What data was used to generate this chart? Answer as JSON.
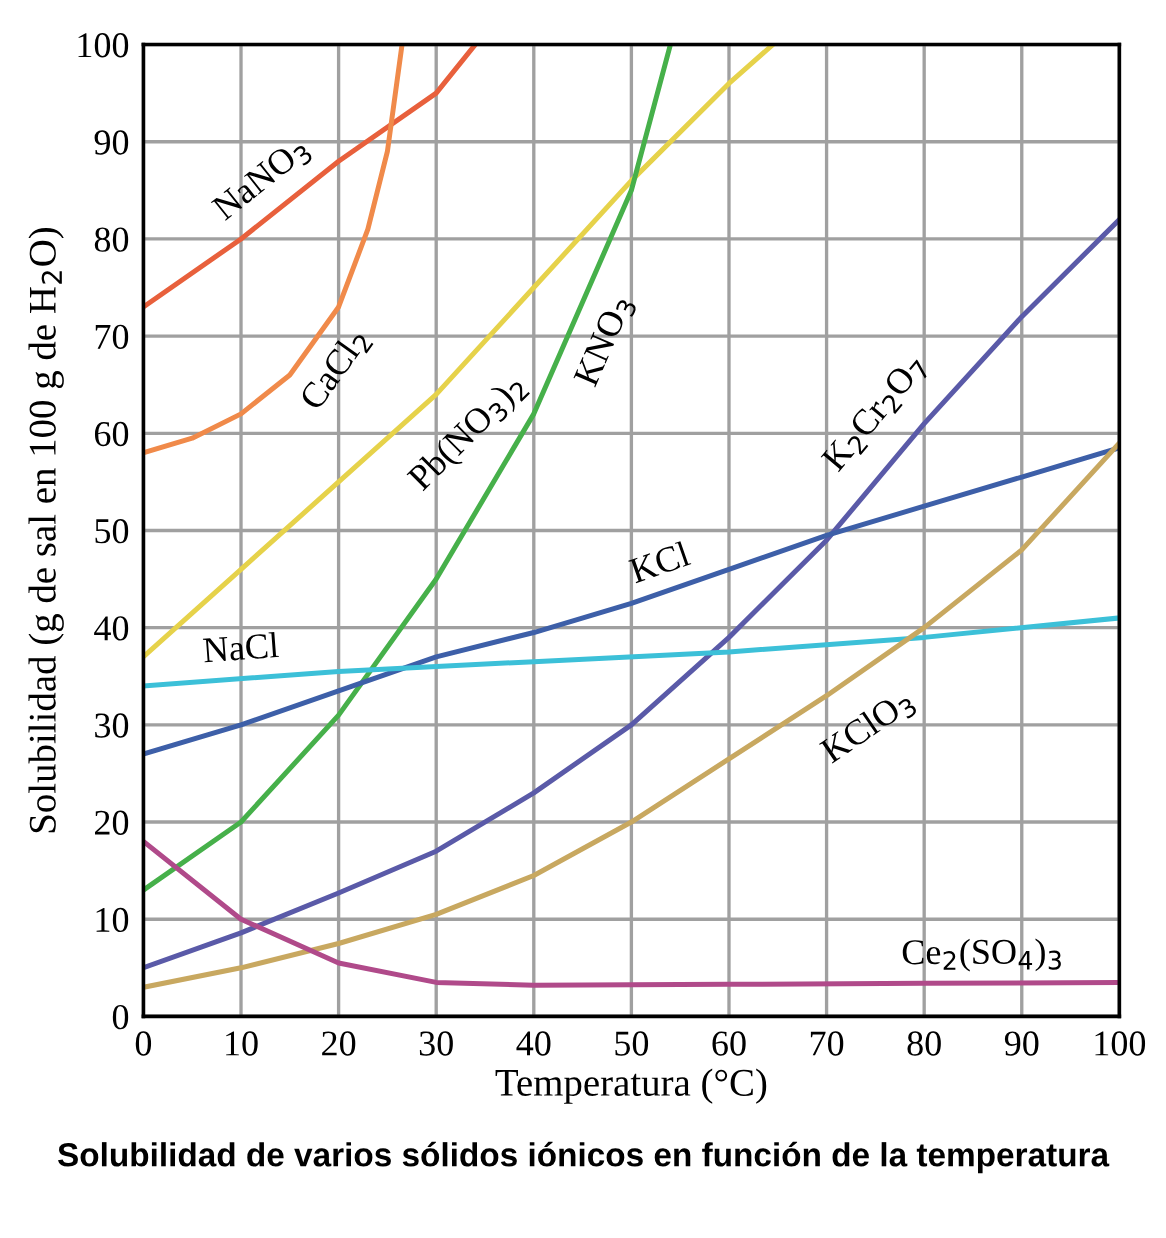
{
  "chart_data": {
    "type": "line",
    "xlabel": "Temperatura (°C)",
    "ylabel": "Solubilidad (g de sal en 100 g de H$_{2}$O)",
    "annotations": [
      "Solubilidad de varios sólidos iónicos en función de la temperatura"
    ],
    "xlim": [
      0,
      100
    ],
    "ylim": [
      0,
      100
    ],
    "xticks": [
      0,
      10,
      20,
      30,
      40,
      50,
      60,
      70,
      80,
      90,
      100
    ],
    "yticks": [
      0,
      10,
      20,
      30,
      40,
      50,
      60,
      70,
      80,
      90,
      100
    ],
    "grid": true,
    "legend": false,
    "marker": "none",
    "line_style": "solid",
    "series": [
      {
        "name": "NaNO$_{3}$",
        "color": "#e8603c",
        "x": [
          0,
          10,
          20,
          30,
          34
        ],
        "values": [
          73,
          80,
          88,
          95,
          100
        ]
      },
      {
        "name": "CaCl$_{2}$",
        "color": "#f08a4a",
        "x": [
          0,
          5,
          10,
          15,
          20,
          23,
          25,
          26.5
        ],
        "values": [
          58,
          59.5,
          62,
          66,
          73,
          81,
          89,
          100
        ]
      },
      {
        "name": "Pb(NO$_{3}$)$_{2}$",
        "color": "#e6d24a",
        "x": [
          0,
          10,
          20,
          30,
          40,
          50,
          60,
          64.5
        ],
        "values": [
          37,
          46,
          55,
          64,
          75,
          86,
          96,
          100
        ]
      },
      {
        "name": "KNO$_{3}$",
        "color": "#46b04a",
        "x": [
          0,
          10,
          20,
          30,
          40,
          50,
          54
        ],
        "values": [
          13,
          20,
          31,
          45,
          62,
          85,
          100
        ]
      },
      {
        "name": "K$_{2}$Cr$_{2}$O$_{7}$",
        "color": "#5a5aa8",
        "x": [
          0,
          10,
          20,
          30,
          40,
          50,
          60,
          70,
          80,
          90,
          100
        ],
        "values": [
          5,
          8.6,
          12.7,
          17,
          23,
          30,
          39,
          49,
          61,
          72,
          82
        ]
      },
      {
        "name": "KCl",
        "color": "#3d5fa8",
        "x": [
          0,
          10,
          20,
          30,
          40,
          50,
          60,
          70,
          80,
          90,
          100
        ],
        "values": [
          27,
          30,
          33.5,
          37,
          39.5,
          42.5,
          46,
          49.5,
          52.5,
          55.5,
          58.5
        ]
      },
      {
        "name": "NaCl",
        "color": "#3cc0d8",
        "x": [
          0,
          20,
          40,
          60,
          80,
          100
        ],
        "values": [
          34,
          35.5,
          36.5,
          37.5,
          39,
          41
        ]
      },
      {
        "name": "KClO$_{3}$",
        "color": "#c8a860",
        "x": [
          0,
          10,
          20,
          30,
          40,
          50,
          60,
          70,
          80,
          90,
          100
        ],
        "values": [
          3,
          5,
          7.5,
          10.5,
          14.5,
          20,
          26.5,
          33,
          40,
          48,
          59
        ]
      },
      {
        "name": "Ce$_{2}$(SO$_{4}$)$_{3}$",
        "color": "#b04a8a",
        "x": [
          0,
          10,
          20,
          30,
          40,
          60,
          80,
          100
        ],
        "values": [
          18,
          10,
          5.5,
          3.5,
          3.2,
          3.3,
          3.4,
          3.5
        ]
      }
    ]
  }
}
